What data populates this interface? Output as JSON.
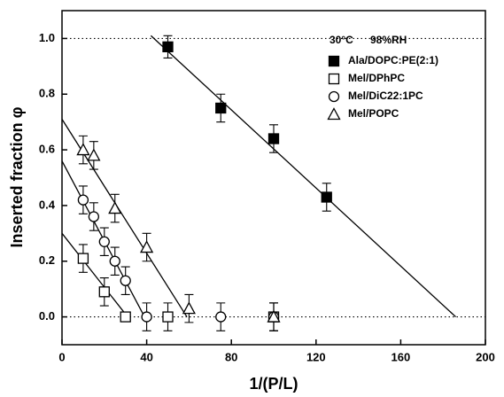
{
  "chart_data": {
    "type": "scatter",
    "xlabel": "1/(P/L)",
    "ylabel": "Inserted fraction φ",
    "annotations": [
      "30°C",
      "98%RH"
    ],
    "xlim": [
      0,
      200
    ],
    "xticks": [
      0,
      40,
      80,
      120,
      160,
      200
    ],
    "ylim": [
      -0.1,
      1.1
    ],
    "yticks": [
      {
        "value": 0,
        "label": "0.0"
      },
      0.2,
      0.4,
      0.6,
      0.8,
      {
        "value": 1,
        "label": "1.0"
      }
    ],
    "hlines": [
      0,
      1
    ],
    "series": [
      {
        "name": "Ala/DOPC:PE(2:1)",
        "marker": "square-filled",
        "color": "#000000",
        "x": [
          50,
          75,
          100,
          125
        ],
        "values": [
          0.97,
          0.75,
          0.64,
          0.43
        ],
        "errors": [
          0.04,
          0.05,
          0.05,
          0.05
        ],
        "fit": {
          "x": [
            42,
            186
          ],
          "y": [
            1.01,
            0
          ]
        }
      },
      {
        "name": "Mel/DPhPC",
        "marker": "square-open",
        "color": "#000000",
        "x": [
          10,
          20,
          30,
          50,
          100
        ],
        "values": [
          0.21,
          0.09,
          0,
          0,
          0
        ],
        "errors": [
          0.05,
          0.05,
          0,
          0.05,
          0.05
        ],
        "fit": {
          "x": [
            0,
            31
          ],
          "y": [
            0.3,
            0
          ]
        }
      },
      {
        "name": "Mel/DiC22:1PC",
        "marker": "circle-open",
        "color": "#000000",
        "x": [
          10,
          15,
          20,
          25,
          30,
          40,
          75,
          100
        ],
        "values": [
          0.42,
          0.36,
          0.27,
          0.2,
          0.13,
          0,
          0,
          0
        ],
        "errors": [
          0.05,
          0.05,
          0.05,
          0.05,
          0.05,
          0.05,
          0.05,
          0.05
        ],
        "fit": {
          "x": [
            0,
            39
          ],
          "y": [
            0.56,
            0
          ]
        }
      },
      {
        "name": "Mel/POPC",
        "marker": "triangle-open",
        "color": "#000000",
        "x": [
          10,
          15,
          25,
          40,
          60,
          100
        ],
        "values": [
          0.6,
          0.58,
          0.39,
          0.25,
          0.03,
          0
        ],
        "errors": [
          0.05,
          0.05,
          0.05,
          0.05,
          0.05,
          0.05
        ],
        "fit": {
          "x": [
            0,
            59
          ],
          "y": [
            0.71,
            0
          ]
        }
      }
    ]
  }
}
